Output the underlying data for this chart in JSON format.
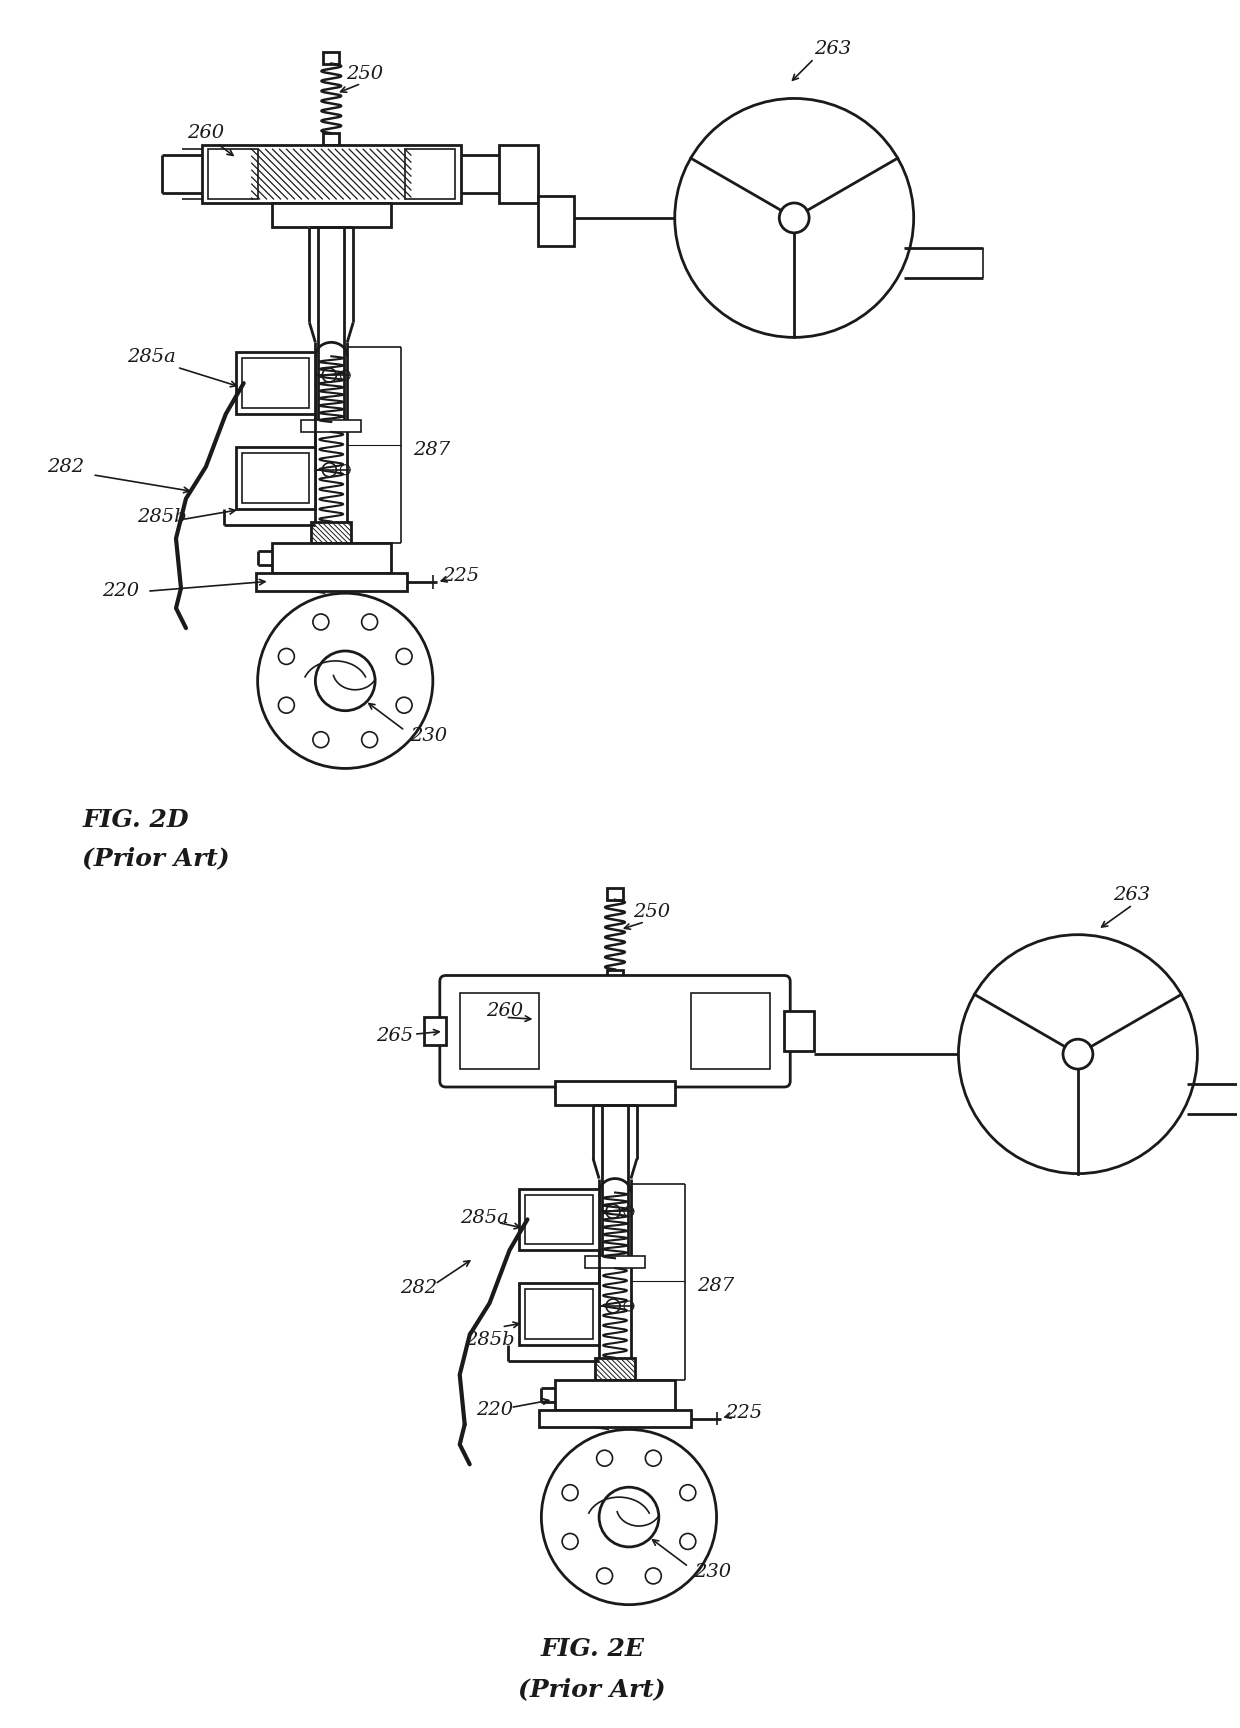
{
  "bg_color": "#ffffff",
  "line_color": "#1a1a1a",
  "fig_width": 12.4,
  "fig_height": 17.28,
  "fig2d_caption": "FIG. 2D",
  "fig2d_subcaption": "(Prior Art)",
  "fig2e_caption": "FIG. 2E",
  "fig2e_subcaption": "(Prior Art)"
}
